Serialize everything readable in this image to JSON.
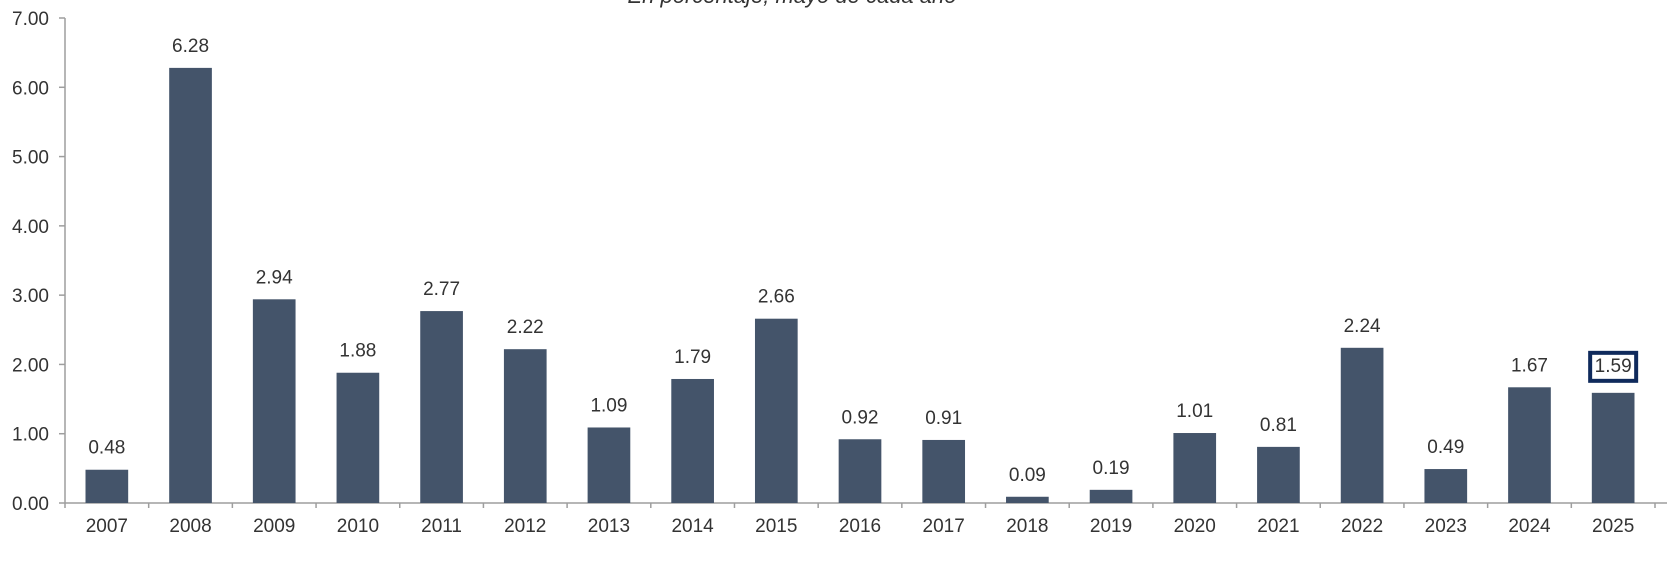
{
  "chart_data": {
    "type": "bar",
    "subtitle": "En porcentaje, mayo de cada año",
    "categories": [
      "2007",
      "2008",
      "2009",
      "2010",
      "2011",
      "2012",
      "2013",
      "2014",
      "2015",
      "2016",
      "2017",
      "2018",
      "2019",
      "2020",
      "2021",
      "2022",
      "2023",
      "2024",
      "2025"
    ],
    "values": [
      0.48,
      6.28,
      2.94,
      1.88,
      2.77,
      2.22,
      1.09,
      1.79,
      2.66,
      0.92,
      0.91,
      0.09,
      0.19,
      1.01,
      0.81,
      2.24,
      0.49,
      1.67,
      1.59
    ],
    "data_labels": [
      "0.48",
      "6.28",
      "2.94",
      "1.88",
      "2.77",
      "2.22",
      "1.09",
      "1.79",
      "2.66",
      "0.92",
      "0.91",
      "0.09",
      "0.19",
      "1.01",
      "0.81",
      "2.24",
      "0.49",
      "1.67",
      "1.59"
    ],
    "y_ticks": [
      "0.00",
      "1.00",
      "2.00",
      "3.00",
      "4.00",
      "5.00",
      "6.00",
      "7.00"
    ],
    "ylim": [
      0,
      7
    ],
    "grid": false,
    "legend": "none",
    "highlight_index": 18,
    "colors": {
      "bar": "#44546a",
      "axis": "#9e9e9e",
      "highlight_box": "#0f2a5c",
      "text": "#333333"
    }
  }
}
